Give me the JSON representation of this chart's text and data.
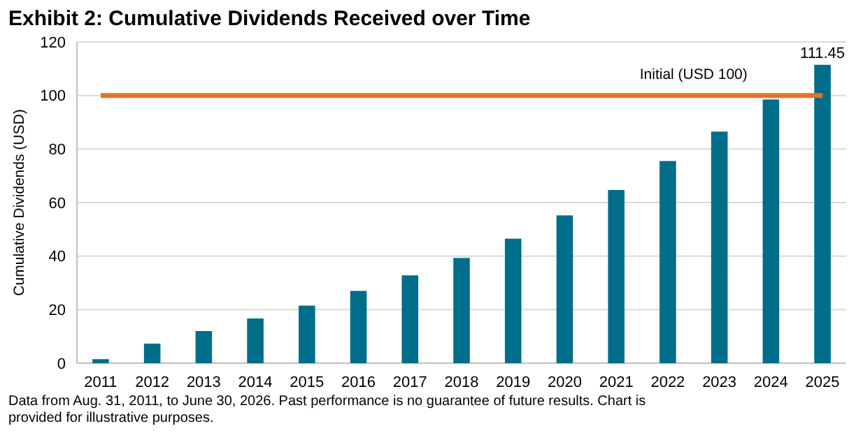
{
  "chart_data": {
    "type": "bar",
    "title": "Exhibit 2: Cumulative Dividends Received over Time",
    "ylabel": "Cumulative Dividends (USD)",
    "categories": [
      "2011",
      "2012",
      "2013",
      "2014",
      "2015",
      "2016",
      "2017",
      "2018",
      "2019",
      "2020",
      "2021",
      "2022",
      "2023",
      "2024",
      "2025"
    ],
    "values": [
      1.5,
      7.3,
      12,
      16.7,
      21.5,
      27,
      32.8,
      39.3,
      46.5,
      55.2,
      64.7,
      75.5,
      86.5,
      98.5,
      111.45
    ],
    "value_labels": [
      null,
      null,
      null,
      null,
      null,
      null,
      null,
      null,
      null,
      null,
      null,
      null,
      null,
      null,
      "111.45"
    ],
    "color": "#006e8a",
    "ylim": [
      0,
      120
    ],
    "yticks": [
      0,
      20,
      40,
      60,
      80,
      100,
      120
    ],
    "grid": "y",
    "ref_lines": [
      {
        "axis": "y",
        "value": 100,
        "label": "Initial (USD 100)",
        "color": "#e8702a"
      }
    ],
    "annotations": [
      "Data from Aug. 31, 2011, to June 30, 2026.  Past performance is no guarantee of future results. Chart is provided for illustrative purposes."
    ]
  }
}
